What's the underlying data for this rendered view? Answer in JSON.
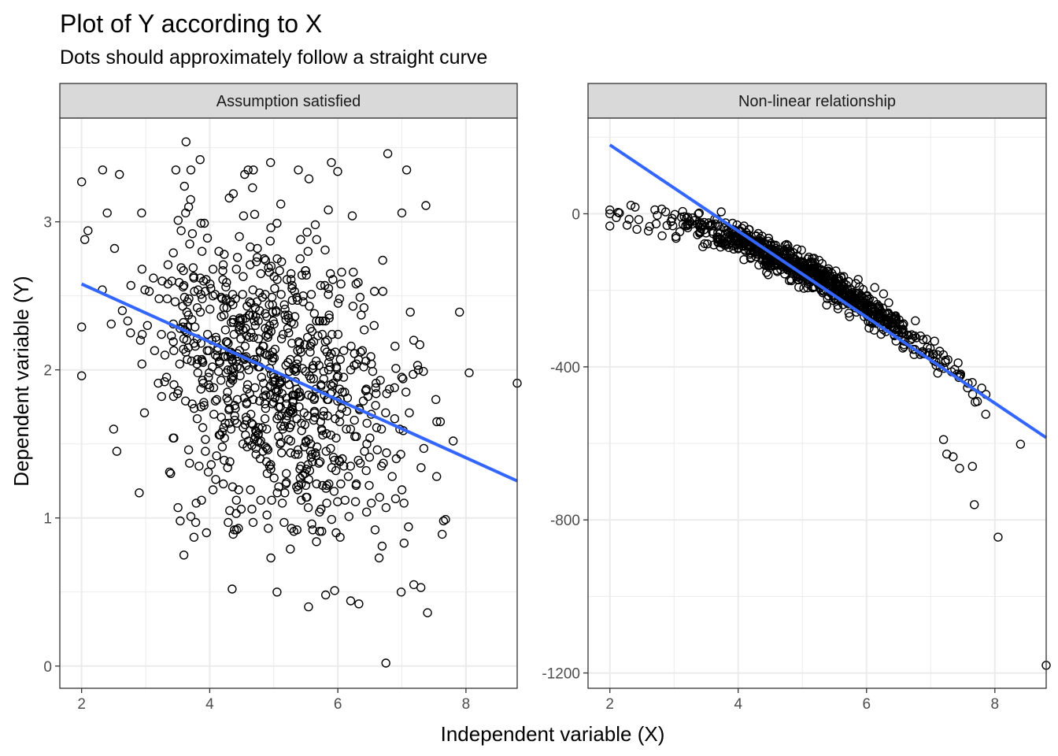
{
  "title": "Plot of Y according to X",
  "subtitle": "Dots should approximately follow a straight curve",
  "chart_data": {
    "type": "scatter",
    "xlabel": "Independent variable (X)",
    "ylabel": "Dependent variable (Y)",
    "grid": true,
    "colors": {
      "points": "#000000",
      "fit_line": "#3366FF",
      "strip_bg": "#D9D9D9",
      "grid": "#EBEBEB"
    },
    "panels": [
      {
        "strip": "Assumption satisfied",
        "xlim": [
          1.66,
          8.8
        ],
        "ylim": [
          -0.15,
          3.7
        ],
        "x_ticks": [
          2,
          4,
          6,
          8
        ],
        "x_tick_labels": [
          "2",
          "4",
          "6",
          "8"
        ],
        "y_ticks": [
          0,
          1,
          2,
          3
        ],
        "y_tick_labels": [
          "0",
          "1",
          "2",
          "3"
        ],
        "fit_line": {
          "x": [
            2.0,
            8.8
          ],
          "y": [
            2.58,
            1.25
          ]
        },
        "generate": {
          "kind": "noise",
          "seed": 11,
          "n": 850,
          "x_mean": 5.0,
          "x_sd": 1.0,
          "y_mean": 1.98,
          "y_sd": 0.52,
          "slope": -0.18
        },
        "points": [
          [
            2.0,
            1.96
          ],
          [
            2.0,
            2.29
          ],
          [
            2.05,
            2.88
          ],
          [
            2.1,
            2.94
          ],
          [
            2.4,
            3.06
          ],
          [
            2.5,
            1.6
          ],
          [
            2.55,
            1.45
          ],
          [
            2.9,
            1.17
          ],
          [
            3.63,
            3.54
          ],
          [
            6.78,
            3.46
          ],
          [
            5.9,
            3.4
          ],
          [
            4.95,
            3.4
          ],
          [
            7.0,
            3.06
          ],
          [
            7.4,
            0.36
          ],
          [
            6.75,
            0.02
          ],
          [
            8.8,
            1.91
          ],
          [
            8.05,
            1.98
          ],
          [
            7.65,
            0.98
          ],
          [
            7.3,
            1.34
          ],
          [
            4.35,
            0.52
          ],
          [
            5.05,
            0.5
          ],
          [
            5.95,
            0.51
          ],
          [
            3.95,
            0.9
          ],
          [
            7.6,
            1.65
          ],
          [
            3.85,
            3.42
          ],
          [
            5.55,
            3.29
          ]
        ]
      },
      {
        "strip": "Non-linear relationship",
        "xlim": [
          1.66,
          8.8
        ],
        "ylim": [
          -1240,
          250
        ],
        "x_ticks": [
          2,
          4,
          6,
          8
        ],
        "x_tick_labels": [
          "2",
          "4",
          "6",
          "8"
        ],
        "y_ticks": [
          -1200,
          -800,
          -400,
          0
        ],
        "y_tick_labels": [
          "-1200",
          "-800",
          "-400",
          "0"
        ],
        "fit_line": {
          "x": [
            2.0,
            8.8
          ],
          "y": [
            180,
            -585
          ]
        },
        "generate": {
          "kind": "curve",
          "seed": 23,
          "n": 850,
          "x_mean": 5.0,
          "x_sd": 1.0,
          "noise_sd": 20
        },
        "points": [
          [
            2.0,
            10
          ],
          [
            2.0,
            -32
          ],
          [
            2.1,
            -10
          ],
          [
            2.15,
            2
          ],
          [
            8.8,
            -1180
          ],
          [
            8.05,
            -845
          ],
          [
            7.68,
            -760
          ],
          [
            7.65,
            -660
          ],
          [
            7.45,
            -665
          ],
          [
            7.35,
            -635
          ],
          [
            7.25,
            -628
          ],
          [
            7.2,
            -590
          ],
          [
            2.45,
            -15
          ],
          [
            2.6,
            -45
          ]
        ]
      }
    ]
  }
}
